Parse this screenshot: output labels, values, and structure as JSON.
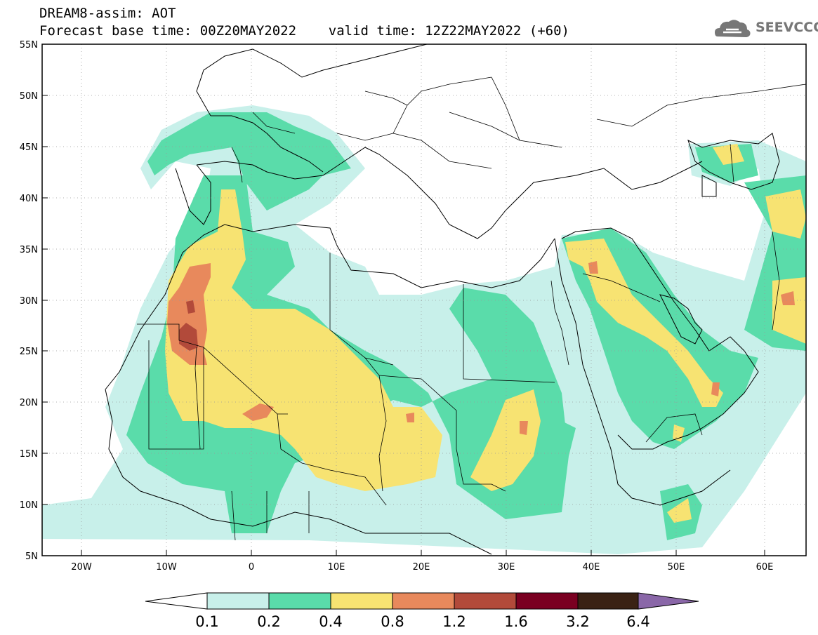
{
  "header": {
    "title_line1": "DREAM8-assim: AOT",
    "title_line2": "Forecast base time: 00Z20MAY2022    valid time: 12Z22MAY2022 (+60)",
    "logo_text": "SEEVCCC"
  },
  "map": {
    "lat_labels": [
      "55N",
      "50N",
      "45N",
      "40N",
      "35N",
      "30N",
      "25N",
      "20N",
      "15N",
      "10N",
      "5N"
    ],
    "lon_labels": [
      "20W",
      "10W",
      "0",
      "10E",
      "20E",
      "30E",
      "40E",
      "50E",
      "60E"
    ],
    "lon_range": [
      -25,
      65
    ],
    "lat_range": [
      5,
      55
    ]
  },
  "colorbar": {
    "labels": [
      "0.1",
      "0.2",
      "0.4",
      "0.8",
      "1.2",
      "1.6",
      "3.2",
      "6.4"
    ],
    "colors": [
      "#ffffff",
      "#c8f0ea",
      "#5adcaa",
      "#f7e372",
      "#e8895c",
      "#b24a3a",
      "#7a0021",
      "#3a2214",
      "#8a67a8"
    ]
  },
  "colors": {
    "aot_0_1": "#c8f0ea",
    "aot_0_2": "#5adcaa",
    "aot_0_4": "#f7e372",
    "aot_0_8": "#e8895c",
    "aot_1_2": "#b24a3a"
  }
}
